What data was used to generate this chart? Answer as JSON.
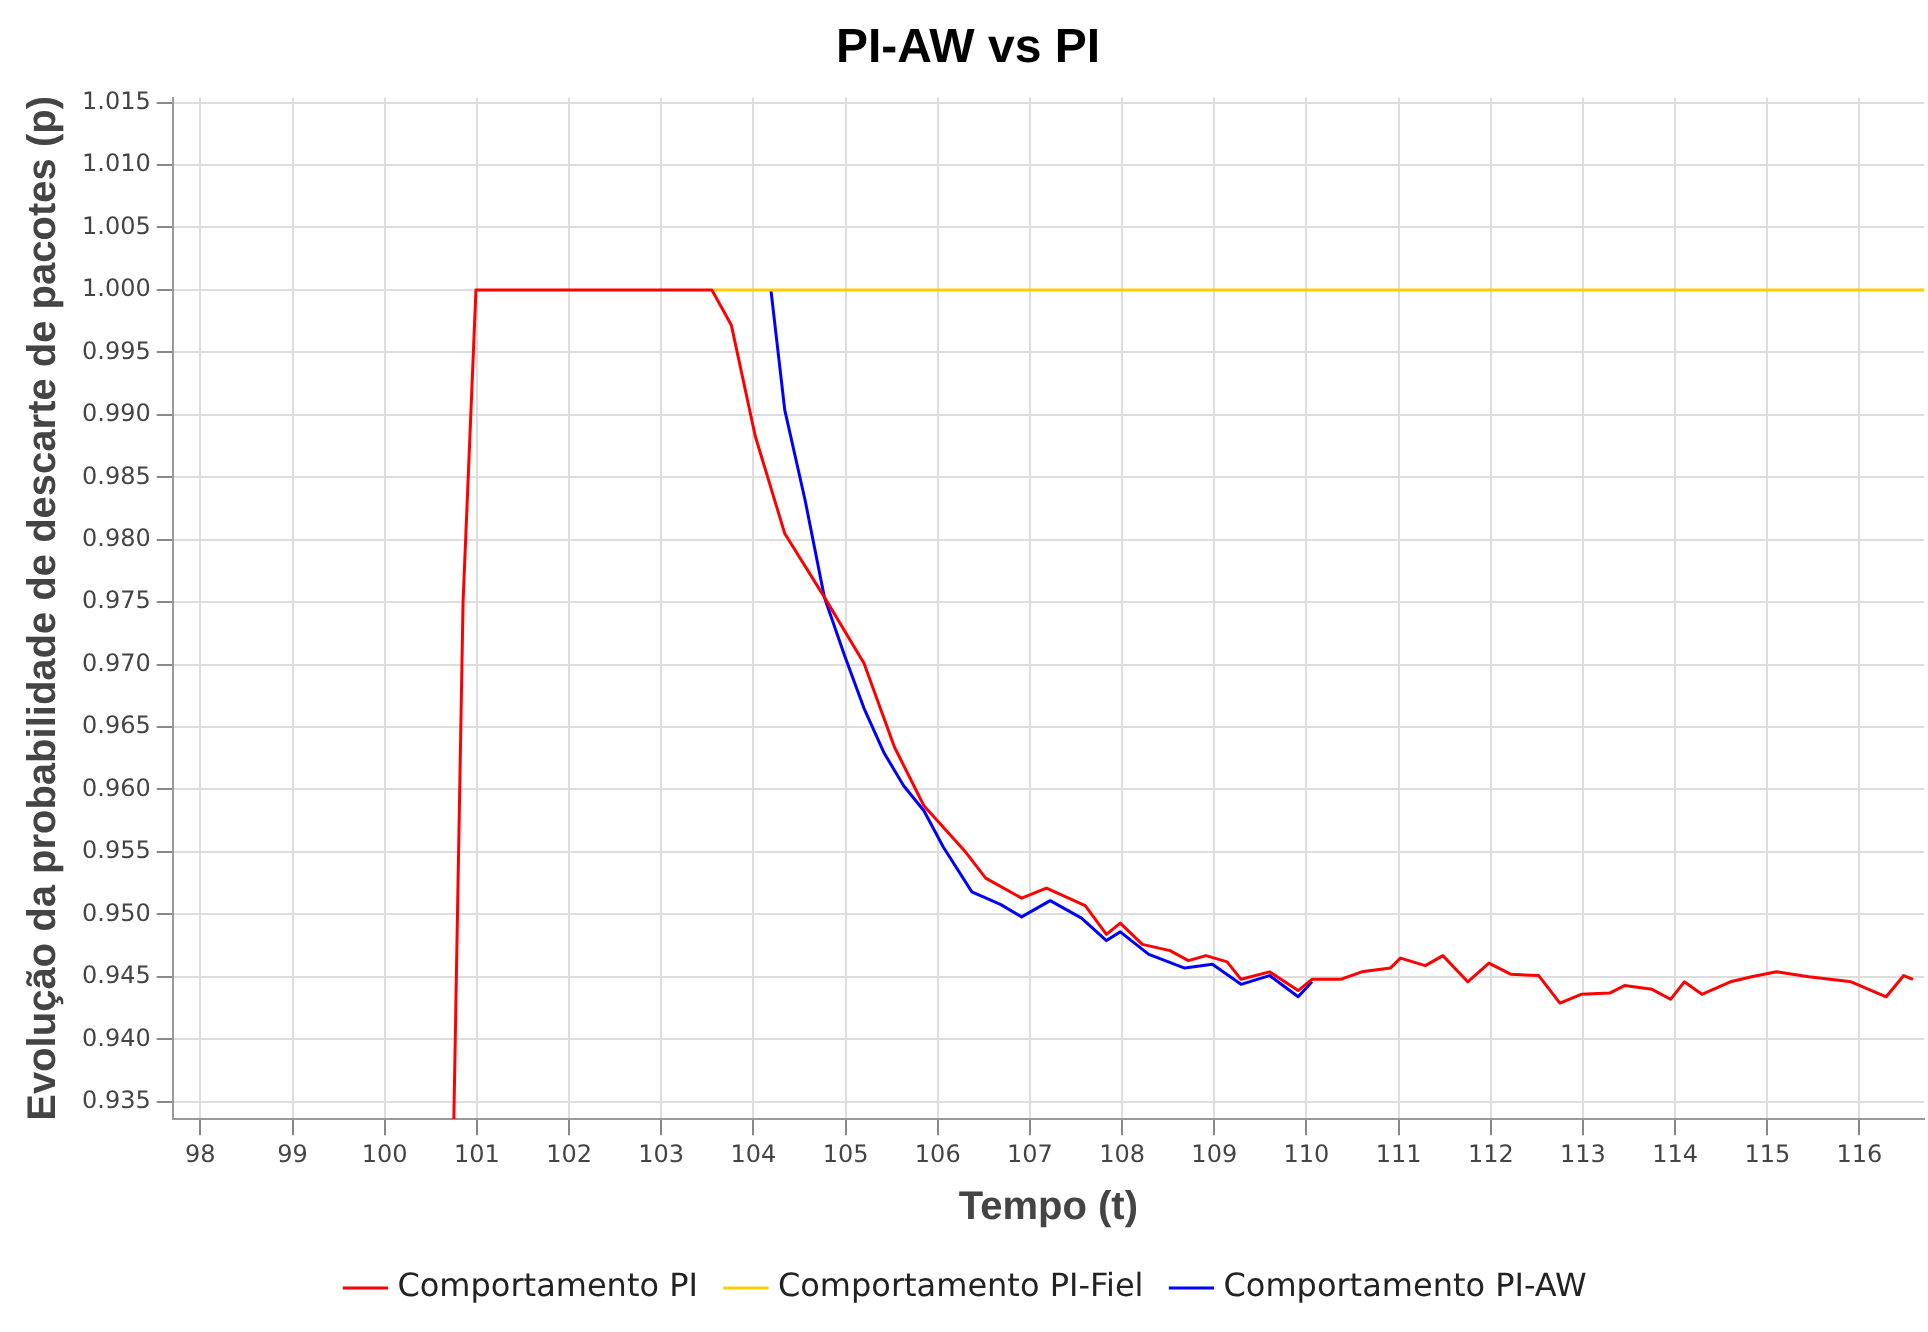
{
  "chart_data": {
    "type": "line",
    "title": "PI-AW vs PI",
    "xlabel": "Tempo (t)",
    "ylabel": "Evolução da probabilidade de descarte de pacotes (p)",
    "xlim": [
      97.7,
      116.7
    ],
    "xticks": [
      98,
      99,
      100,
      101,
      102,
      103,
      104,
      105,
      106,
      107,
      108,
      109,
      110,
      111,
      112,
      113,
      114,
      115,
      116
    ],
    "ylim": [
      0.9336,
      1.0154
    ],
    "yticks": [
      0.935,
      {
        "value": 0.94,
        "label": "0.940"
      },
      0.945,
      {
        "value": 0.95,
        "label": "0.950"
      },
      0.955,
      {
        "value": 0.96,
        "label": "0.960"
      },
      0.965,
      {
        "value": 0.97,
        "label": "0.970"
      },
      0.975,
      {
        "value": 0.98,
        "label": "0.980"
      },
      0.985,
      {
        "value": 0.99,
        "label": "0.990"
      },
      0.995,
      {
        "value": 1,
        "label": "1.000"
      },
      1.005,
      {
        "value": 1.01,
        "label": "1.010"
      },
      1.015
    ],
    "grid": true,
    "legend": "bottom",
    "marker": "none",
    "line_style": "solid",
    "series": [
      {
        "name": "Comportamento PI",
        "color": "#ff0000",
        "x": [
          100.75,
          100.85,
          100.99,
          102.0,
          103.0,
          103.55,
          103.76,
          104.02,
          104.34,
          104.77,
          105.2,
          105.53,
          105.85,
          106.29,
          106.52,
          106.91,
          107.18,
          107.6,
          107.83,
          107.98,
          108.22,
          108.52,
          108.72,
          108.91,
          109.14,
          109.29,
          109.6,
          109.91,
          110.06,
          110.37,
          110.6,
          110.91,
          111.02,
          111.29,
          111.48,
          111.75,
          111.98,
          112.22,
          112.52,
          112.75,
          112.98,
          113.29,
          113.45,
          113.75,
          113.95,
          114.1,
          114.29,
          114.6,
          114.83,
          115.1,
          115.45,
          115.91,
          116.29,
          116.48,
          116.58
        ],
        "values": [
          0.9336,
          0.975,
          1.0,
          1.0,
          1.0,
          1.0,
          0.9972,
          0.9883,
          0.9805,
          0.9754,
          0.9701,
          0.9634,
          0.9587,
          0.9551,
          0.9529,
          0.9513,
          0.9521,
          0.9507,
          0.9484,
          0.9493,
          0.9476,
          0.9471,
          0.9463,
          0.9467,
          0.9462,
          0.9448,
          0.9454,
          0.9439,
          0.9448,
          0.9448,
          0.9454,
          0.9457,
          0.9465,
          0.9459,
          0.9467,
          0.9446,
          0.9461,
          0.9452,
          0.9451,
          0.9429,
          0.9436,
          0.9437,
          0.9443,
          0.944,
          0.9432,
          0.9446,
          0.9436,
          0.9446,
          0.945,
          0.9454,
          0.945,
          0.9446,
          0.9434,
          0.9451,
          0.9448
        ]
      },
      {
        "name": "Comportamento PI-Fiel",
        "color": "#ffcc00",
        "x": [
          103.55,
          116.7
        ],
        "values": [
          1.0,
          1.0
        ]
      },
      {
        "name": "Comportamento PI-AW",
        "color": "#0000ff",
        "x": [
          104.19,
          104.34,
          104.56,
          104.77,
          104.99,
          105.2,
          105.42,
          105.63,
          105.85,
          106.06,
          106.37,
          106.68,
          106.91,
          107.22,
          107.56,
          107.83,
          107.98,
          108.29,
          108.68,
          108.98,
          109.29,
          109.6,
          109.91,
          110.06
        ],
        "values": [
          1.0,
          0.9904,
          0.9832,
          0.9754,
          0.9707,
          0.9665,
          0.9629,
          0.9603,
          0.9583,
          0.9554,
          0.9518,
          0.9508,
          0.9498,
          0.9511,
          0.9497,
          0.9479,
          0.9486,
          0.9468,
          0.9457,
          0.946,
          0.9444,
          0.9451,
          0.9434,
          0.9446
        ]
      }
    ]
  }
}
